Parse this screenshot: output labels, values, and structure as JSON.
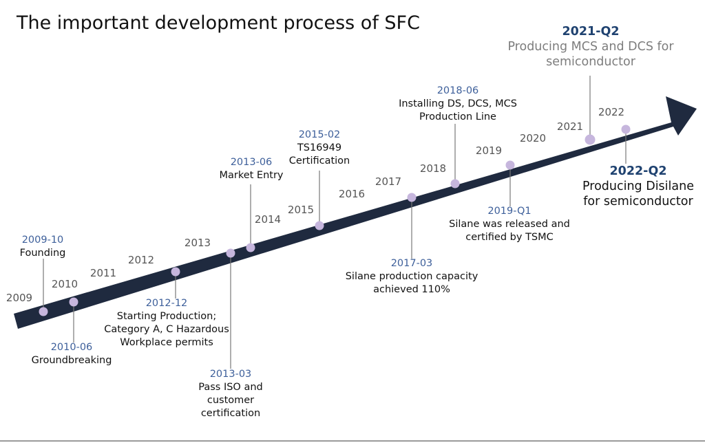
{
  "title": "The important development process of SFC",
  "colors": {
    "arrow": "#1f2a3f",
    "dot": "#c6b6dd",
    "leader": "#777777",
    "date": "#3d5f9a"
  },
  "years": [
    "2009",
    "2010",
    "2011",
    "2012",
    "2013",
    "2014",
    "2015",
    "2016",
    "2017",
    "2018",
    "2019",
    "2020",
    "2021",
    "2022"
  ],
  "events": [
    {
      "date": "2009-10",
      "desc": [
        "Founding"
      ]
    },
    {
      "date": "2010-06",
      "desc": [
        "Groundbreaking"
      ]
    },
    {
      "date": "2012-12",
      "desc": [
        "Starting Production;",
        "Category A, C Hazardous",
        "Workplace permits"
      ]
    },
    {
      "date": "2013-03",
      "desc": [
        "Pass ISO and",
        "customer",
        "certification"
      ]
    },
    {
      "date": "2013-06",
      "desc": [
        "Market Entry"
      ]
    },
    {
      "date": "2015-02",
      "desc": [
        "TS16949",
        "Certification"
      ]
    },
    {
      "date": "2017-03",
      "desc": [
        "Silane production capacity",
        "achieved 110%"
      ]
    },
    {
      "date": "2018-06",
      "desc": [
        "Installing DS, DCS, MCS",
        "Production Line"
      ]
    },
    {
      "date": "2019-Q1",
      "desc": [
        "Silane was released and",
        "certified by TSMC"
      ]
    },
    {
      "date": "2021-Q2",
      "desc": [
        "Producing MCS and DCS for",
        "semiconductor"
      ]
    },
    {
      "date": "2022-Q2",
      "desc": [
        "Producing Disilane",
        "for semiconductor"
      ]
    }
  ]
}
